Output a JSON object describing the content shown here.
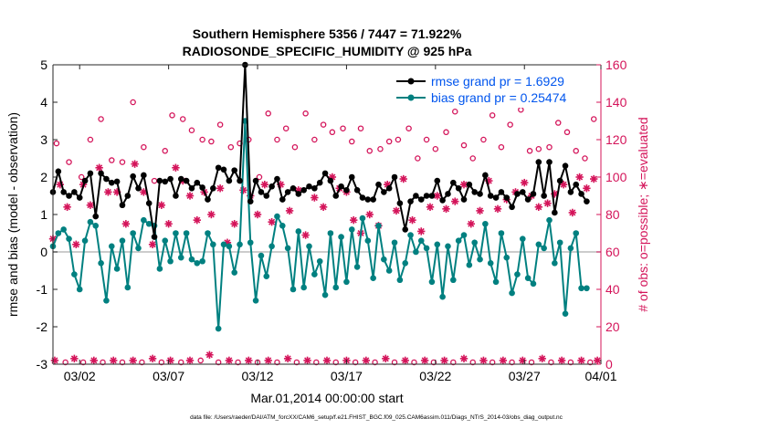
{
  "chart_data": {
    "type": "line",
    "title": "Southern Hemisphere 5356 / 7447 = 71.922%",
    "subtitle": "RADIOSONDE_SPECIFIC_HUMIDITY @ 925 hPa",
    "xlabel": "Mar.01,2014 00:00:00 start",
    "ylabel": "rmse and bias (model - observation)",
    "ylabel_right": "# of obs: o=possible; ∗=evaluated",
    "footer": "data file: /Users/raeder/DAI/ATM_forcXX/CAM6_setup/f.e21.FHIST_BGC.f09_025.CAM6assim.011/Diags_NTrS_2014-03/obs_diag_output.nc",
    "xlim": [
      0.5,
      31.3
    ],
    "ylim": [
      -3,
      5
    ],
    "ylim_right": [
      0,
      160
    ],
    "x_ticks": [
      2,
      7,
      12,
      17,
      22,
      27,
      32
    ],
    "x_tick_labels": [
      "03/02",
      "03/07",
      "03/12",
      "03/17",
      "03/22",
      "03/27",
      "04/01"
    ],
    "y_ticks": [
      -3,
      -2,
      -1,
      0,
      1,
      2,
      3,
      4,
      5
    ],
    "y_tick_labels": [
      "-3",
      "-2",
      "-1",
      "0",
      "1",
      "2",
      "3",
      "4",
      "5"
    ],
    "y_ticks_right": [
      0,
      20,
      40,
      60,
      80,
      100,
      120,
      140,
      160
    ],
    "y_tick_labels_right": [
      "0",
      "20",
      "40",
      "60",
      "80",
      "100",
      "120",
      "140",
      "160"
    ],
    "zero_line": 0,
    "colors": {
      "rmse": "#000000",
      "bias": "#008080",
      "obs": "#d4145a",
      "zero": "#bbbbbb",
      "legend_text": "#0055ee"
    },
    "series": [
      {
        "name": "rmse grand pr = 1.6929",
        "axis": "left",
        "values": [
          1.6,
          2.15,
          1.6,
          1.5,
          1.6,
          1.45,
          1.9,
          2.1,
          0.95,
          2.1,
          1.95,
          1.85,
          1.88,
          1.25,
          1.5,
          2.02,
          1.7,
          2.05,
          1.3,
          0.4,
          1.9,
          1.88,
          1.95,
          1.5,
          1.95,
          1.9,
          1.7,
          1.85,
          1.72,
          1.4,
          1.7,
          2.25,
          2.2,
          1.9,
          2.18,
          1.9,
          5.0,
          1.35,
          1.9,
          1.6,
          1.5,
          1.75,
          1.95,
          1.4,
          1.6,
          1.7,
          1.55,
          1.65,
          1.75,
          1.7,
          1.85,
          2.1,
          1.9,
          1.5,
          1.75,
          1.65,
          2.0,
          1.65,
          1.45,
          1.4,
          1.4,
          1.8,
          1.6,
          1.7,
          2.0,
          1.3,
          0.6,
          1.35,
          1.5,
          1.4,
          1.5,
          1.5,
          1.9,
          1.38,
          1.55,
          1.85,
          1.7,
          1.4,
          1.8,
          1.6,
          1.55,
          2.05,
          1.5,
          1.45,
          1.6,
          1.45,
          1.2,
          1.55,
          1.6,
          1.4,
          1.55,
          2.4,
          1.5,
          2.4,
          1.05,
          1.9,
          2.3,
          1.6,
          1.8,
          1.55,
          1.35
        ],
        "x_start": 0.5,
        "x_step": 0.3
      },
      {
        "name": "bias grand pr = 0.25474",
        "axis": "left",
        "values": [
          0.15,
          0.5,
          0.6,
          0.35,
          -0.6,
          -1.0,
          0.3,
          0.8,
          0.7,
          -0.3,
          -1.3,
          0.15,
          -0.45,
          0.3,
          -0.95,
          0.5,
          0.1,
          0.85,
          0.75,
          0.7,
          -0.45,
          0.3,
          -0.25,
          0.5,
          -0.15,
          0.5,
          -0.2,
          -0.3,
          -0.25,
          0.5,
          0.2,
          -2.05,
          0.2,
          0.15,
          -0.55,
          0.2,
          3.5,
          0.25,
          -1.3,
          -0.1,
          -0.65,
          0.15,
          0.95,
          0.7,
          0.1,
          -1.0,
          0.55,
          -0.95,
          0.15,
          -0.6,
          -0.25,
          -1.15,
          0.5,
          -0.95,
          0.4,
          -0.8,
          0.6,
          -0.4,
          0.9,
          0.3,
          -0.7,
          0.7,
          -0.2,
          -0.5,
          0.25,
          -0.75,
          -0.3,
          0.45,
          0.0,
          0.3,
          0.1,
          -0.8,
          0.2,
          -1.2,
          0.15,
          -0.75,
          0.3,
          0.45,
          -0.35,
          0.25,
          -0.2,
          0.75,
          -0.3,
          -0.8,
          0.5,
          -0.15,
          -1.1,
          -0.6,
          0.35,
          -0.7,
          -0.85,
          0.2,
          0.1,
          0.85,
          -0.3,
          0.25,
          -1.65,
          0.1,
          0.5,
          -0.97,
          -0.97
        ],
        "x_start": 0.5,
        "x_step": 0.3
      },
      {
        "name": "# of obs possible",
        "axis": "right",
        "marker": "circle",
        "points": [
          [
            0.7,
            118
          ],
          [
            1.4,
            108
          ],
          [
            2.1,
            100
          ],
          [
            2.6,
            120
          ],
          [
            3.2,
            131
          ],
          [
            3.8,
            109
          ],
          [
            4.4,
            108
          ],
          [
            5.0,
            140
          ],
          [
            5.6,
            116
          ],
          [
            6.2,
            98
          ],
          [
            6.8,
            114
          ],
          [
            7.2,
            133
          ],
          [
            7.8,
            131
          ],
          [
            8.3,
            125
          ],
          [
            8.9,
            120
          ],
          [
            9.4,
            119
          ],
          [
            9.9,
            128
          ],
          [
            10.5,
            116
          ],
          [
            11.0,
            118
          ],
          [
            11.5,
            120
          ],
          [
            12.1,
            100
          ],
          [
            12.6,
            134
          ],
          [
            13.1,
            120
          ],
          [
            13.6,
            126
          ],
          [
            14.1,
            116
          ],
          [
            14.7,
            134
          ],
          [
            15.2,
            120
          ],
          [
            15.7,
            128
          ],
          [
            16.2,
            124
          ],
          [
            16.8,
            126
          ],
          [
            17.3,
            119
          ],
          [
            17.8,
            126
          ],
          [
            18.3,
            114
          ],
          [
            18.9,
            115
          ],
          [
            19.4,
            119
          ],
          [
            19.9,
            120
          ],
          [
            20.5,
            126
          ],
          [
            21.0,
            110
          ],
          [
            21.5,
            120
          ],
          [
            22.0,
            115
          ],
          [
            22.6,
            124
          ],
          [
            23.1,
            135
          ],
          [
            23.6,
            117
          ],
          [
            24.1,
            110
          ],
          [
            24.7,
            120
          ],
          [
            25.2,
            133
          ],
          [
            25.7,
            116
          ],
          [
            26.2,
            128
          ],
          [
            26.8,
            136
          ],
          [
            27.3,
            114
          ],
          [
            27.8,
            115
          ],
          [
            28.4,
            116
          ],
          [
            28.9,
            129
          ],
          [
            29.4,
            124
          ],
          [
            29.9,
            114
          ],
          [
            30.4,
            110
          ],
          [
            30.9,
            131
          ]
        ]
      },
      {
        "name": "# of obs evaluated",
        "axis": "right",
        "marker": "asterisk",
        "points": [
          [
            0.5,
            67
          ],
          [
            0.9,
            96
          ],
          [
            1.3,
            84
          ],
          [
            1.8,
            64
          ],
          [
            2.2,
            96
          ],
          [
            2.6,
            85
          ],
          [
            3.1,
            105
          ],
          [
            3.6,
            92
          ],
          [
            4.1,
            92
          ],
          [
            4.6,
            75
          ],
          [
            5.1,
            107
          ],
          [
            5.6,
            92
          ],
          [
            6.1,
            64
          ],
          [
            6.6,
            85
          ],
          [
            7.0,
            75
          ],
          [
            7.4,
            105
          ],
          [
            7.8,
            98
          ],
          [
            8.2,
            90
          ],
          [
            8.6,
            77
          ],
          [
            9.0,
            92
          ],
          [
            9.4,
            80
          ],
          [
            9.9,
            94
          ],
          [
            10.3,
            65
          ],
          [
            10.7,
            75
          ],
          [
            11.2,
            93
          ],
          [
            11.6,
            90
          ],
          [
            12.0,
            80
          ],
          [
            12.4,
            96
          ],
          [
            12.8,
            76
          ],
          [
            13.3,
            96
          ],
          [
            13.8,
            82
          ],
          [
            14.3,
            93
          ],
          [
            14.7,
            69
          ],
          [
            15.2,
            89
          ],
          [
            15.7,
            84
          ],
          [
            16.2,
            100
          ],
          [
            16.6,
            94
          ],
          [
            17.0,
            92
          ],
          [
            17.4,
            77
          ],
          [
            17.8,
            70
          ],
          [
            18.3,
            80
          ],
          [
            18.8,
            74
          ],
          [
            19.3,
            96
          ],
          [
            19.8,
            82
          ],
          [
            20.2,
            99
          ],
          [
            20.7,
            77
          ],
          [
            21.2,
            71
          ],
          [
            21.7,
            84
          ],
          [
            22.1,
            90
          ],
          [
            22.6,
            83
          ],
          [
            23.1,
            87
          ],
          [
            23.6,
            96
          ],
          [
            24.0,
            75
          ],
          [
            24.5,
            82
          ],
          [
            25.0,
            98
          ],
          [
            25.5,
            83
          ],
          [
            26.0,
            88
          ],
          [
            26.5,
            92
          ],
          [
            27.0,
            97
          ],
          [
            27.4,
            90
          ],
          [
            27.8,
            84
          ],
          [
            28.3,
            86
          ],
          [
            28.7,
            91
          ],
          [
            29.2,
            96
          ],
          [
            29.7,
            81
          ],
          [
            30.1,
            100
          ],
          [
            30.5,
            94
          ],
          [
            30.9,
            99
          ]
        ]
      },
      {
        "name": "# of obs bottom",
        "axis": "right",
        "marker": "mixed",
        "points": [
          [
            0.6,
            2
          ],
          [
            1.2,
            1
          ],
          [
            1.7,
            3
          ],
          [
            2.2,
            1
          ],
          [
            2.8,
            2
          ],
          [
            3.3,
            1
          ],
          [
            3.9,
            2
          ],
          [
            4.4,
            1
          ],
          [
            5.0,
            2
          ],
          [
            5.5,
            1
          ],
          [
            6.1,
            3
          ],
          [
            6.6,
            1
          ],
          [
            7.1,
            2
          ],
          [
            7.7,
            1
          ],
          [
            8.2,
            2
          ],
          [
            8.8,
            2
          ],
          [
            9.3,
            5
          ],
          [
            9.8,
            1
          ],
          [
            10.4,
            2
          ],
          [
            10.9,
            1
          ],
          [
            11.5,
            2
          ],
          [
            12.0,
            1
          ],
          [
            12.6,
            2
          ],
          [
            13.1,
            1
          ],
          [
            13.7,
            3
          ],
          [
            14.2,
            1
          ],
          [
            14.8,
            2
          ],
          [
            15.3,
            1
          ],
          [
            15.9,
            2
          ],
          [
            16.4,
            1
          ],
          [
            17.0,
            2
          ],
          [
            17.5,
            1
          ],
          [
            18.1,
            2
          ],
          [
            18.6,
            1
          ],
          [
            19.2,
            3
          ],
          [
            19.7,
            1
          ],
          [
            20.3,
            2
          ],
          [
            20.8,
            1
          ],
          [
            21.4,
            2
          ],
          [
            21.9,
            1
          ],
          [
            22.5,
            2
          ],
          [
            23.0,
            1
          ],
          [
            23.6,
            3
          ],
          [
            24.1,
            1
          ],
          [
            24.7,
            2
          ],
          [
            25.2,
            1
          ],
          [
            25.8,
            2
          ],
          [
            26.3,
            1
          ],
          [
            26.9,
            2
          ],
          [
            27.4,
            1
          ],
          [
            28.0,
            3
          ],
          [
            28.5,
            1
          ],
          [
            29.1,
            2
          ],
          [
            29.6,
            1
          ],
          [
            30.2,
            2
          ],
          [
            30.7,
            1
          ],
          [
            31.1,
            2
          ]
        ]
      }
    ]
  }
}
